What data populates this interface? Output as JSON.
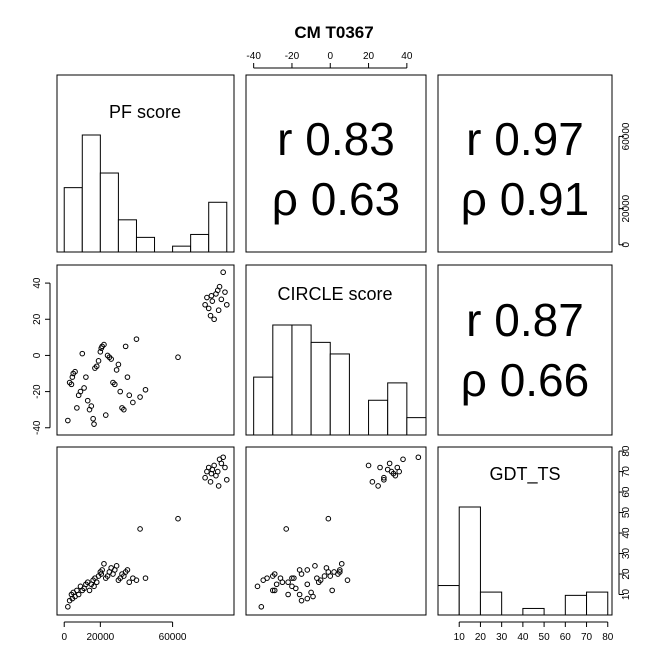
{
  "chart_data": {
    "type": "scatter-matrix",
    "title": "CM T0367",
    "variables": [
      "PF score",
      "CIRCLE score",
      "GDT_TS"
    ],
    "ranges": {
      "pf": [
        -4000,
        94000
      ],
      "circle": [
        -44,
        50
      ],
      "gdt": [
        0,
        82
      ]
    },
    "axes": {
      "bottom_pf": {
        "ticks": [
          0,
          20000,
          60000
        ],
        "labels": [
          "0",
          "20000",
          "60000"
        ]
      },
      "bottom_gdt": {
        "ticks": [
          10,
          20,
          30,
          40,
          50,
          60,
          70,
          80
        ],
        "labels": [
          "10",
          "20",
          "30",
          "40",
          "50",
          "60",
          "70",
          "80"
        ]
      },
      "top_circle": {
        "ticks": [
          -40,
          -20,
          0,
          20,
          40
        ],
        "labels": [
          "-40",
          "-20",
          "0",
          "20",
          "40"
        ]
      },
      "left_circle": {
        "ticks": [
          -40,
          -20,
          0,
          20,
          40
        ],
        "labels": [
          "-40",
          "-20",
          "0",
          "20",
          "40"
        ]
      },
      "right_pf": {
        "ticks": [
          0,
          20000,
          60000
        ],
        "labels": [
          "0",
          "20000",
          "60000"
        ]
      },
      "right_gdt": {
        "ticks": [
          10,
          20,
          30,
          40,
          50,
          60,
          70,
          80
        ],
        "labels": [
          "10",
          "20",
          "30",
          "40",
          "50",
          "60",
          "70",
          "80"
        ]
      }
    },
    "correlations": [
      {
        "pair": [
          "PF score",
          "CIRCLE score"
        ],
        "r_text": "r 0.83",
        "rho_text": "ρ 0.63"
      },
      {
        "pair": [
          "PF score",
          "GDT_TS"
        ],
        "r_text": "r 0.97",
        "rho_text": "ρ 0.91"
      },
      {
        "pair": [
          "CIRCLE score",
          "GDT_TS"
        ],
        "r_text": "r 0.87",
        "rho_text": "ρ 0.66"
      }
    ],
    "histograms": {
      "pf": {
        "label": "PF score",
        "bins": [
          [
            0,
            10000
          ],
          [
            10000,
            20000
          ],
          [
            20000,
            30000
          ],
          [
            30000,
            40000
          ],
          [
            40000,
            50000
          ],
          [
            50000,
            60000
          ],
          [
            60000,
            70000
          ],
          [
            70000,
            80000
          ],
          [
            80000,
            90000
          ]
        ],
        "counts": [
          22,
          40,
          27,
          11,
          5,
          0,
          2,
          6,
          17
        ]
      },
      "circle": {
        "label": "CIRCLE score",
        "bins": [
          [
            -40,
            -30
          ],
          [
            -30,
            -20
          ],
          [
            -20,
            -10
          ],
          [
            -10,
            0
          ],
          [
            0,
            10
          ],
          [
            10,
            20
          ],
          [
            20,
            30
          ],
          [
            30,
            40
          ],
          [
            40,
            50
          ]
        ],
        "counts": [
          10,
          19,
          19,
          16,
          14,
          0,
          6,
          9,
          3
        ]
      },
      "gdt": {
        "label": "GDT_TS",
        "bins": [
          [
            0,
            10
          ],
          [
            10,
            20
          ],
          [
            20,
            30
          ],
          [
            30,
            40
          ],
          [
            40,
            50
          ],
          [
            50,
            60
          ],
          [
            60,
            70
          ],
          [
            70,
            80
          ],
          [
            80,
            90
          ]
        ],
        "counts": [
          9,
          33,
          7,
          0,
          2,
          0,
          6,
          7,
          0
        ]
      }
    },
    "points": [
      [
        2000,
        4,
        -36
      ],
      [
        3000,
        7,
        -15
      ],
      [
        4000,
        10,
        -16
      ],
      [
        4500,
        8,
        -12
      ],
      [
        5000,
        11,
        -10
      ],
      [
        6000,
        9,
        -9
      ],
      [
        7000,
        12,
        -29
      ],
      [
        8000,
        10,
        -22
      ],
      [
        9000,
        14,
        -20
      ],
      [
        10000,
        12,
        1
      ],
      [
        11000,
        13,
        -18
      ],
      [
        12000,
        15,
        -12
      ],
      [
        13000,
        16,
        -25
      ],
      [
        14000,
        12,
        -30
      ],
      [
        15000,
        15,
        -28
      ],
      [
        16000,
        17,
        -35
      ],
      [
        16500,
        14,
        -38
      ],
      [
        17000,
        18,
        -7
      ],
      [
        18000,
        16,
        -6
      ],
      [
        19000,
        19,
        -3
      ],
      [
        20000,
        21,
        2
      ],
      [
        20500,
        20,
        4
      ],
      [
        21000,
        22,
        5
      ],
      [
        22000,
        25,
        6
      ],
      [
        23000,
        18,
        -33
      ],
      [
        24000,
        19,
        0
      ],
      [
        25000,
        21,
        -1
      ],
      [
        26000,
        23,
        -2
      ],
      [
        27000,
        20,
        -15
      ],
      [
        28000,
        22,
        -16
      ],
      [
        29000,
        24,
        -8
      ],
      [
        30000,
        17,
        -5
      ],
      [
        31000,
        18,
        -20
      ],
      [
        32000,
        20,
        -29
      ],
      [
        33000,
        19,
        -30
      ],
      [
        34000,
        21,
        5
      ],
      [
        35000,
        22,
        -12
      ],
      [
        36000,
        16,
        -22
      ],
      [
        38000,
        18,
        -26
      ],
      [
        40000,
        17,
        9
      ],
      [
        42000,
        42,
        -23
      ],
      [
        45000,
        18,
        -19
      ],
      [
        63000,
        47,
        -1
      ],
      [
        78000,
        67,
        28
      ],
      [
        79000,
        70,
        32
      ],
      [
        80000,
        72,
        26
      ],
      [
        81000,
        65,
        22
      ],
      [
        82000,
        71,
        30
      ],
      [
        83000,
        73,
        20
      ],
      [
        84000,
        68,
        34
      ],
      [
        85000,
        70,
        36
      ],
      [
        86000,
        76,
        38
      ],
      [
        87000,
        74,
        31
      ],
      [
        88000,
        77,
        46
      ],
      [
        89000,
        72,
        35
      ],
      [
        90000,
        66,
        28
      ],
      [
        85500,
        63,
        25
      ],
      [
        81500,
        69,
        33
      ]
    ]
  }
}
